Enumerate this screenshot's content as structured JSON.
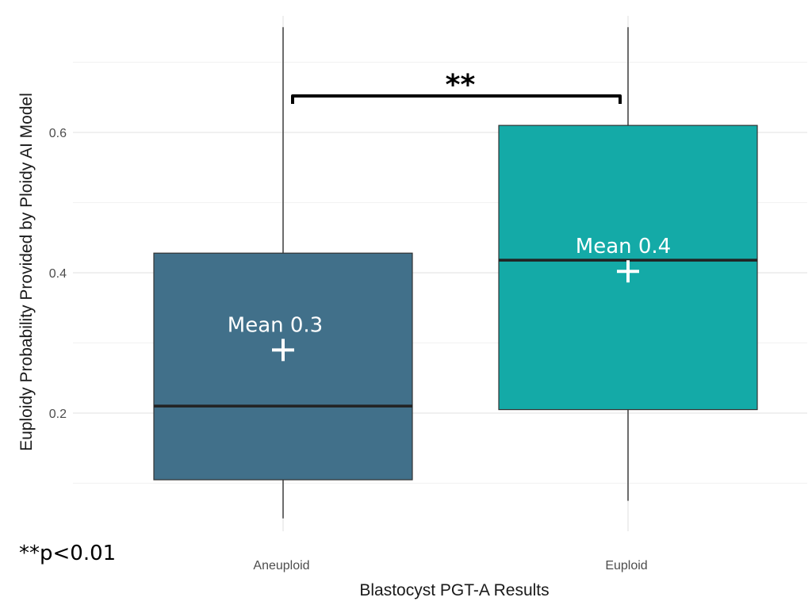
{
  "chart_data": {
    "type": "box",
    "xlabel": "Blastocyst PGT-A Results",
    "ylabel": "Euploidy Probability Provided by Ploidy AI Model",
    "ylim": [
      0.03,
      0.75
    ],
    "yticks": [
      0.2,
      0.4,
      0.6
    ],
    "ytick_labels": [
      "0.2",
      "0.4",
      "0.6"
    ],
    "grid": true,
    "categories": [
      "Aneuploid",
      "Euploid"
    ],
    "boxes": [
      {
        "category": "Aneuploid",
        "color": "#41708a",
        "whisker_low": 0.05,
        "q1": 0.105,
        "median": 0.21,
        "q3": 0.428,
        "whisker_high": 0.75,
        "mean": 0.29,
        "mean_label": "Mean 0.3"
      },
      {
        "category": "Euploid",
        "color": "#14aaa7",
        "whisker_low": 0.075,
        "q1": 0.205,
        "median": 0.418,
        "q3": 0.61,
        "whisker_high": 0.75,
        "mean": 0.402,
        "mean_label": "Mean 0.4"
      }
    ],
    "significance": {
      "between": [
        "Aneuploid",
        "Euploid"
      ],
      "label": "**"
    },
    "footnote": "**p<0.01"
  }
}
